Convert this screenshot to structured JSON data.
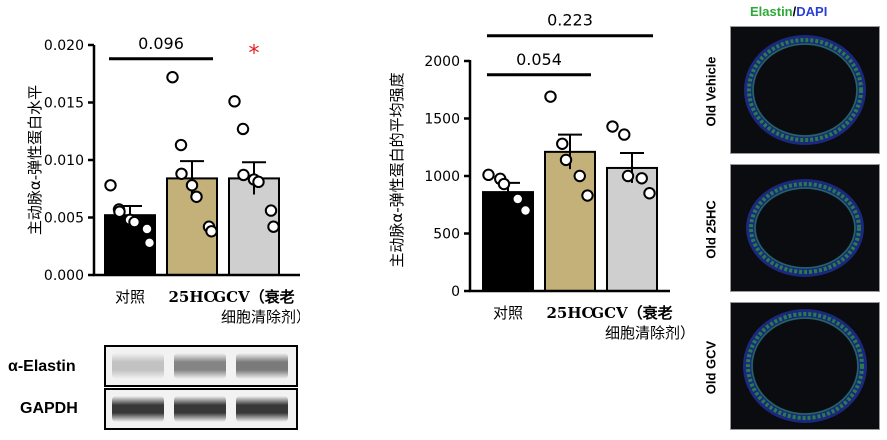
{
  "colors": {
    "black": "#000000",
    "tan": "#c4b079",
    "gray": "#cfcfcf",
    "star": "#e02020",
    "elastin": "#2ea836",
    "dapi": "#2a3fd6",
    "tissue_bg": "#0a0c10"
  },
  "chart_data": [
    {
      "type": "bar",
      "ylabel": "主动脉α-弹性蛋白水平",
      "ylim": [
        0,
        0.02
      ],
      "yticks": [
        "0.000",
        "0.005",
        "0.010",
        "0.015",
        "0.020"
      ],
      "categories": [
        {
          "lines": [
            "对照"
          ]
        },
        {
          "lines": [
            "25HC"
          ]
        },
        {
          "lines": [
            "GCV（衰老",
            "细胞清除剂）"
          ]
        }
      ],
      "values": [
        0.0052,
        0.0084,
        0.0084
      ],
      "errors": [
        0.0008,
        0.0015,
        0.0014
      ],
      "points": [
        [
          0.0078,
          0.0057,
          0.0055,
          0.0048,
          0.0046,
          0.004,
          0.0028
        ],
        [
          0.0172,
          0.0113,
          0.0088,
          0.0078,
          0.0068,
          0.0042,
          0.0038
        ],
        [
          0.0151,
          0.0127,
          0.0087,
          0.0083,
          0.0081,
          0.0056,
          0.0042
        ]
      ],
      "annotations": [
        {
          "text": "0.096",
          "from": 0,
          "to": 1,
          "y": 0.0188
        },
        {
          "text": "*",
          "over": 2,
          "y": 0.0197
        }
      ]
    },
    {
      "type": "bar",
      "ylabel": "主动脉α-弹性蛋白的平均强度",
      "ylim": [
        0,
        2000
      ],
      "yticks": [
        "0",
        "500",
        "1000",
        "1500",
        "2000"
      ],
      "categories": [
        {
          "lines": [
            "对照"
          ]
        },
        {
          "lines": [
            "25HC"
          ]
        },
        {
          "lines": [
            "GCV（衰老",
            "细胞清除剂）"
          ]
        }
      ],
      "values": [
        860,
        1210,
        1070
      ],
      "errors": [
        80,
        150,
        130
      ],
      "points": [
        [
          1010,
          975,
          930,
          800,
          700
        ],
        [
          1690,
          1280,
          1140,
          1000,
          830
        ],
        [
          1430,
          1360,
          1000,
          980,
          850
        ]
      ],
      "annotations": [
        {
          "text": "0.054",
          "from": 0,
          "to": 1,
          "y": 1880
        },
        {
          "text": "0.223",
          "from": 0,
          "to": 2,
          "y": 2220
        }
      ]
    }
  ],
  "blot": {
    "rows": [
      {
        "label": "α-Elastin",
        "intensity": [
          0.25,
          0.55,
          0.6
        ]
      },
      {
        "label": "GAPDH",
        "intensity": [
          0.92,
          0.92,
          0.92
        ]
      }
    ]
  },
  "micrographs": {
    "title_green": "Elastin",
    "title_sep": "/",
    "title_blue": "DAPI",
    "panels": [
      {
        "label": "Old Vehicle"
      },
      {
        "label": "Old 25HC"
      },
      {
        "label": "Old GCV"
      }
    ]
  }
}
